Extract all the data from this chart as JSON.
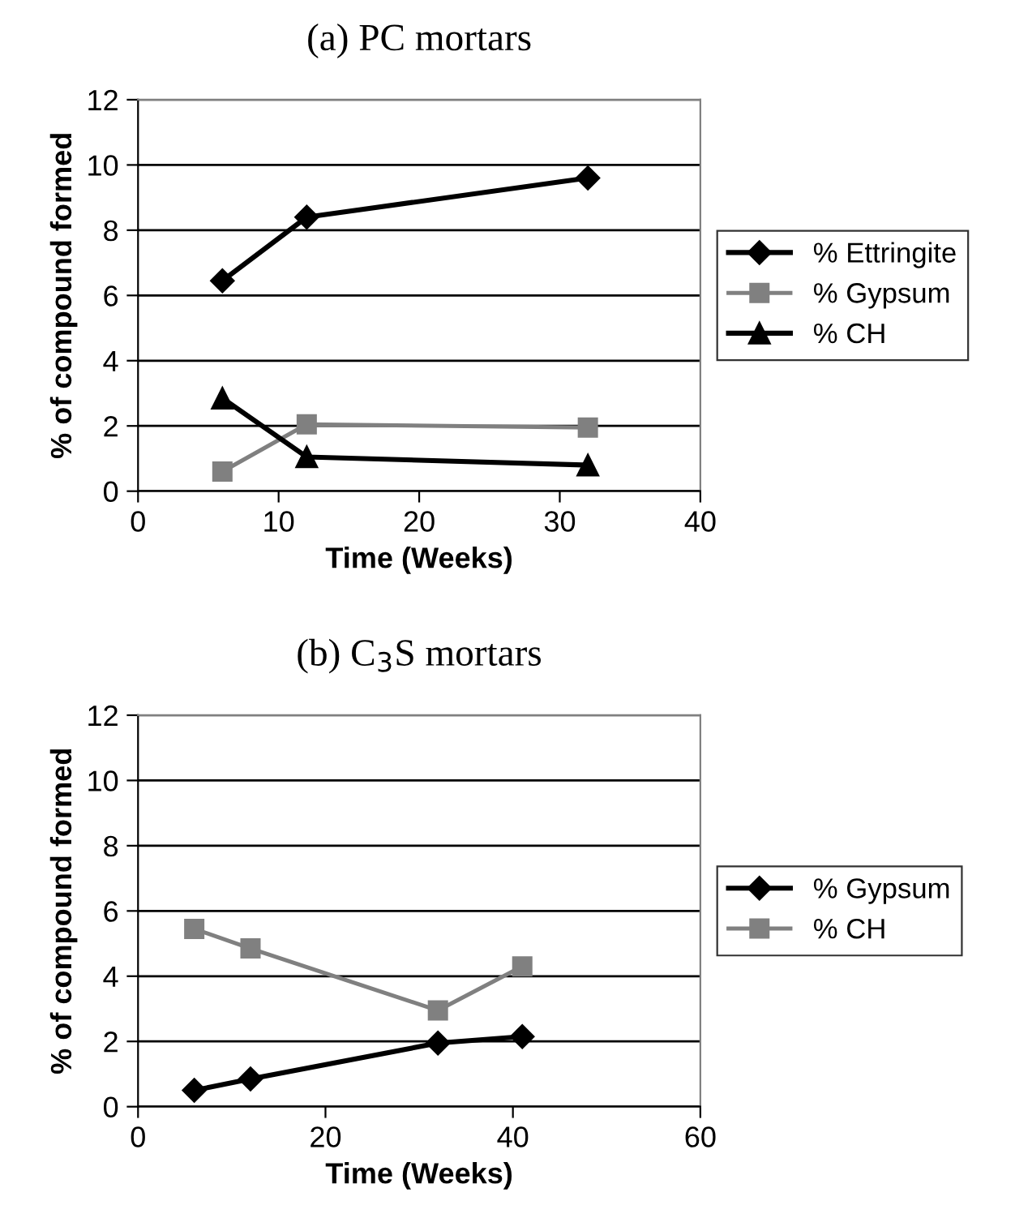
{
  "chart_data": [
    {
      "type": "line",
      "title": "(a) PC mortars",
      "xlabel": "Time (Weeks)",
      "ylabel": "% of compound formed",
      "xlim": [
        0,
        40
      ],
      "xticks": [
        0,
        10,
        20,
        30,
        40
      ],
      "ylim": [
        0,
        12
      ],
      "yticks": [
        0,
        2,
        4,
        6,
        8,
        10,
        12
      ],
      "grid": "y",
      "legend": "right",
      "series": [
        {
          "name": "% Ettringite",
          "color": "#000000",
          "marker": "diamond",
          "x": [
            6,
            12,
            32
          ],
          "values": [
            6.45,
            8.4,
            9.6
          ]
        },
        {
          "name": "% Gypsum",
          "color": "#808080",
          "marker": "square",
          "x": [
            6,
            12,
            32
          ],
          "values": [
            0.6,
            2.05,
            1.95
          ]
        },
        {
          "name": "% CH",
          "color": "#000000",
          "marker": "triangle",
          "x": [
            6,
            12,
            32
          ],
          "values": [
            2.85,
            1.05,
            0.8
          ]
        }
      ]
    },
    {
      "type": "line",
      "title": "(b) C$_{3}$S mortars",
      "xlabel": "Time (Weeks)",
      "ylabel": "% of compound formed",
      "xlim": [
        0,
        60
      ],
      "xticks": [
        0,
        20,
        40,
        60
      ],
      "ylim": [
        0,
        12
      ],
      "yticks": [
        0,
        2,
        4,
        6,
        8,
        10,
        12
      ],
      "grid": "y",
      "legend": "right",
      "series": [
        {
          "name": "% Gypsum",
          "color": "#000000",
          "marker": "diamond",
          "x": [
            6,
            12,
            32,
            41
          ],
          "values": [
            0.5,
            0.85,
            1.95,
            2.15
          ]
        },
        {
          "name": "% CH",
          "color": "#808080",
          "marker": "square",
          "x": [
            6,
            12,
            32,
            41
          ],
          "values": [
            5.45,
            4.85,
            2.95,
            4.3
          ]
        }
      ]
    }
  ]
}
